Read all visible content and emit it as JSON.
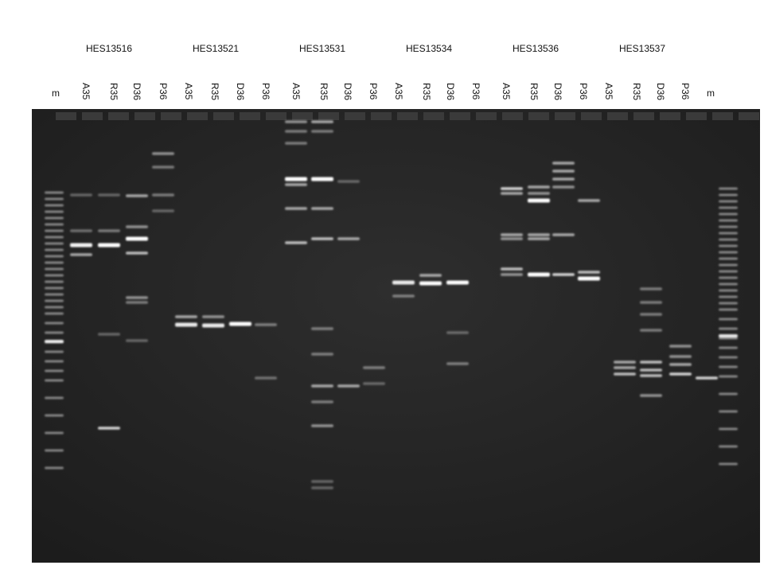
{
  "groups": [
    "HES13516",
    "HES13521",
    "HES13531",
    "HES13534",
    "HES13536",
    "HES13537"
  ],
  "lanes": [
    "m",
    "A35",
    "R35",
    "D36",
    "P36",
    "A35",
    "R35",
    "D36",
    "P36",
    "A35",
    "R35",
    "D36",
    "P36",
    "A35",
    "R35",
    "D36",
    "P36",
    "A35",
    "R35",
    "D36",
    "P36",
    "A35",
    "R35",
    "D36",
    "P36",
    "m"
  ],
  "colors": {
    "gel_background": "#2a2a2a",
    "band": "#ffffff",
    "label": "#111111"
  }
}
